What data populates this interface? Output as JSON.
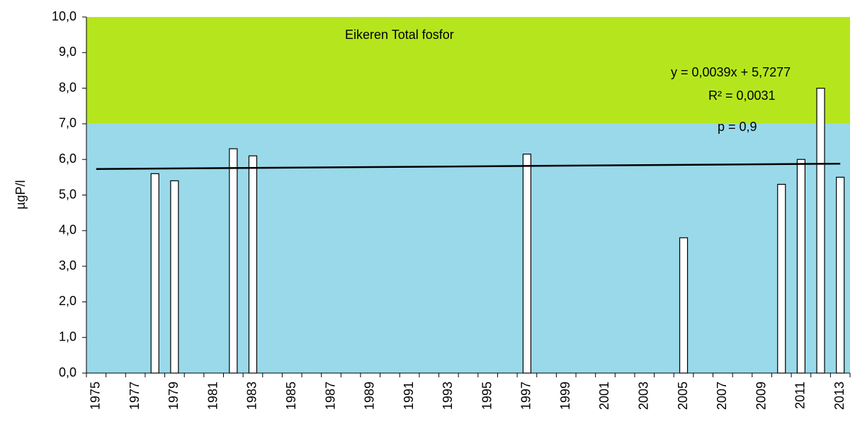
{
  "chart_data": {
    "type": "bar",
    "title": "Eikeren Total fosfor",
    "ylabel": "µgP/l",
    "annotations": [
      "y = 0,0039x + 5,7277",
      "R² = 0,0031",
      "p = 0,9"
    ],
    "categories": [
      "1975",
      null,
      "1977",
      null,
      "1979",
      null,
      "1981",
      null,
      "1983",
      null,
      "1985",
      null,
      "1987",
      null,
      "1989",
      null,
      "1991",
      null,
      "1993",
      null,
      "1995",
      null,
      "1997",
      null,
      "1999",
      null,
      "2001",
      null,
      "2003",
      null,
      "2005",
      null,
      "2007",
      null,
      "2009",
      null,
      "2011",
      null,
      "2013"
    ],
    "values": [
      null,
      null,
      null,
      5.6,
      5.4,
      null,
      null,
      6.3,
      6.1,
      null,
      null,
      null,
      null,
      null,
      null,
      null,
      null,
      null,
      null,
      null,
      null,
      null,
      6.15,
      null,
      null,
      null,
      null,
      null,
      null,
      null,
      3.8,
      null,
      null,
      null,
      null,
      5.3,
      6.0,
      8.0,
      5.5
    ],
    "color": "#ffffff",
    "edgecolor": "#000000",
    "ylim": [
      0,
      10
    ],
    "yticks": [
      {
        "value": 0,
        "label": "0,0"
      },
      {
        "value": 1,
        "label": "1,0"
      },
      {
        "value": 2,
        "label": "2,0"
      },
      {
        "value": 3,
        "label": "3,0"
      },
      {
        "value": 4,
        "label": "4,0"
      },
      {
        "value": 5,
        "label": "5,0"
      },
      {
        "value": 6,
        "label": "6,0"
      },
      {
        "value": 7,
        "label": "7,0"
      },
      {
        "value": 8,
        "label": "8,0"
      },
      {
        "value": 9,
        "label": "9,0"
      },
      {
        "value": 10,
        "label": "10,0"
      }
    ],
    "bands": [
      {
        "from": 0,
        "to": 7,
        "color": "#99d9ea"
      },
      {
        "from": 7,
        "to": 10,
        "color": "#b5e61d"
      }
    ],
    "trendline": {
      "values": [
        5.73,
        5.88
      ],
      "color": "#000000"
    }
  }
}
